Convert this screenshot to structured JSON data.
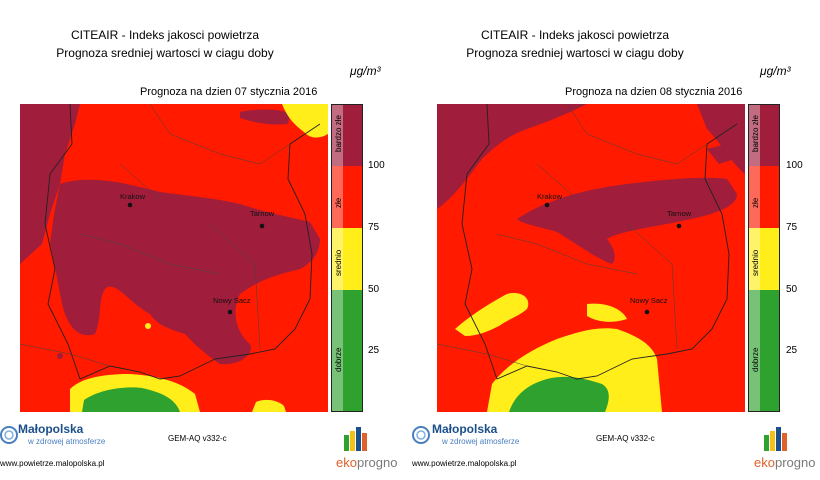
{
  "colors": {
    "bardzo_zle": "#a01e3c",
    "zle": "#ff1a00",
    "srednio": "#ffee1a",
    "dobrze": "#2ea12e",
    "background": "#ffffff"
  },
  "common": {
    "title_line1": "CITEAIR - Indeks jakosci powietrza",
    "title_line2": "Prognoza sredniej wartosci w ciagu doby",
    "unit": "μg/m³",
    "model": "GEM-AQ v332-c",
    "logo_name": "Małopolska",
    "logo_tagline": "w zdrowej atmosferze",
    "website": "www.powietrze.malopolska.pl",
    "eko_part1": "eko",
    "eko_part2": "progno",
    "legend_labels": [
      "bardzo złe",
      "złe",
      "srednio",
      "dobrze"
    ],
    "tick_labels": [
      "100",
      "75",
      "50",
      "25"
    ],
    "cities": [
      "Krakow",
      "Tarnow",
      "Nowy Sacz"
    ]
  },
  "maps": [
    {
      "date_label": "Prognoza na dzien  07 stycznia 2016"
    },
    {
      "date_label": "Prognoza na dzien  08 stycznia 2016"
    }
  ]
}
